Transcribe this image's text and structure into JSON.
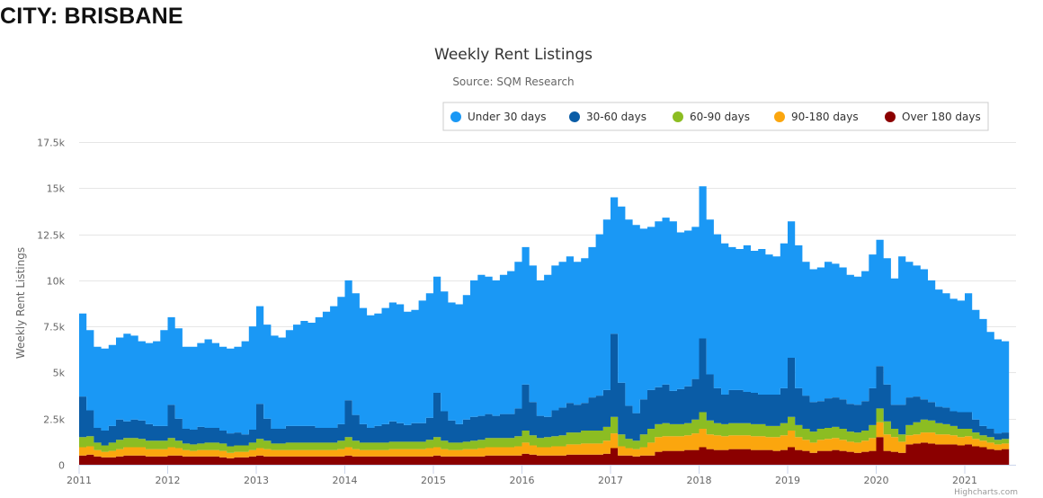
{
  "page": {
    "heading": "CITY: BRISBANE"
  },
  "chart_data": {
    "type": "area",
    "stacked": true,
    "step": true,
    "title": "Weekly Rent Listings",
    "subtitle": "Source: SQM Research",
    "ylabel": "Weekly Rent Listings",
    "xlabel": "",
    "ylim": [
      0,
      17500
    ],
    "yticks": [
      0,
      2500,
      5000,
      7500,
      10000,
      12500,
      15000,
      17500
    ],
    "ytick_labels": [
      "0",
      "2.5k",
      "5k",
      "7.5k",
      "10k",
      "12.5k",
      "15k",
      "17.5k"
    ],
    "xticks": [
      "2011",
      "2012",
      "2013",
      "2014",
      "2015",
      "2016",
      "2017",
      "2018",
      "2019",
      "2020",
      "2021"
    ],
    "grid": true,
    "legend_position": "top-right",
    "credit": "Highcharts.com",
    "x": [
      "2011-01",
      "2011-02",
      "2011-03",
      "2011-04",
      "2011-05",
      "2011-06",
      "2011-07",
      "2011-08",
      "2011-09",
      "2011-10",
      "2011-11",
      "2011-12",
      "2012-01",
      "2012-02",
      "2012-03",
      "2012-04",
      "2012-05",
      "2012-06",
      "2012-07",
      "2012-08",
      "2012-09",
      "2012-10",
      "2012-11",
      "2012-12",
      "2013-01",
      "2013-02",
      "2013-03",
      "2013-04",
      "2013-05",
      "2013-06",
      "2013-07",
      "2013-08",
      "2013-09",
      "2013-10",
      "2013-11",
      "2013-12",
      "2014-01",
      "2014-02",
      "2014-03",
      "2014-04",
      "2014-05",
      "2014-06",
      "2014-07",
      "2014-08",
      "2014-09",
      "2014-10",
      "2014-11",
      "2014-12",
      "2015-01",
      "2015-02",
      "2015-03",
      "2015-04",
      "2015-05",
      "2015-06",
      "2015-07",
      "2015-08",
      "2015-09",
      "2015-10",
      "2015-11",
      "2015-12",
      "2016-01",
      "2016-02",
      "2016-03",
      "2016-04",
      "2016-05",
      "2016-06",
      "2016-07",
      "2016-08",
      "2016-09",
      "2016-10",
      "2016-11",
      "2016-12",
      "2017-01",
      "2017-02",
      "2017-03",
      "2017-04",
      "2017-05",
      "2017-06",
      "2017-07",
      "2017-08",
      "2017-09",
      "2017-10",
      "2017-11",
      "2017-12",
      "2018-01",
      "2018-02",
      "2018-03",
      "2018-04",
      "2018-05",
      "2018-06",
      "2018-07",
      "2018-08",
      "2018-09",
      "2018-10",
      "2018-11",
      "2018-12",
      "2019-01",
      "2019-02",
      "2019-03",
      "2019-04",
      "2019-05",
      "2019-06",
      "2019-07",
      "2019-08",
      "2019-09",
      "2019-10",
      "2019-11",
      "2019-12",
      "2020-01",
      "2020-02",
      "2020-03",
      "2020-04",
      "2020-05",
      "2020-06",
      "2020-07",
      "2020-08",
      "2020-09",
      "2020-10",
      "2020-11",
      "2020-12",
      "2021-01",
      "2021-02",
      "2021-03",
      "2021-04",
      "2021-05",
      "2021-06"
    ],
    "series": [
      {
        "name": "Under 30 days",
        "color": "#1a98f5",
        "values": [
          4500,
          4350,
          4400,
          4450,
          4400,
          4450,
          4750,
          4550,
          4300,
          4400,
          4600,
          5200,
          4750,
          4900,
          4450,
          4500,
          4550,
          4800,
          4600,
          4550,
          4600,
          4650,
          5050,
          5600,
          5300,
          5100,
          5050,
          4950,
          5200,
          5500,
          5700,
          5600,
          6000,
          6300,
          6600,
          6900,
          6500,
          6600,
          6300,
          6100,
          6100,
          6300,
          6450,
          6450,
          6150,
          6150,
          6650,
          6750,
          6300,
          6500,
          6400,
          6500,
          6750,
          7400,
          7650,
          7450,
          7350,
          7550,
          7750,
          7950,
          7450,
          7400,
          7350,
          7700,
          7850,
          7900,
          7950,
          7750,
          7850,
          8150,
          8750,
          9250,
          7400,
          9550,
          10100,
          10200,
          9250,
          8850,
          9000,
          9050,
          9200,
          8500,
          8450,
          8250,
          8250,
          8400,
          8350,
          8200,
          7750,
          7650,
          7950,
          7700,
          7900,
          7600,
          7500,
          7850,
          7400,
          7750,
          7250,
          7200,
          7250,
          7400,
          7250,
          7150,
          7000,
          6950,
          7050,
          7250,
          6850,
          6850,
          6850,
          8050,
          7350,
          7100,
          7050,
          6600,
          6350,
          6200,
          6100,
          6050,
          6450,
          5950,
          5800,
          5250,
          5100,
          4950
        ]
      },
      {
        "name": "30-60 days",
        "color": "#0a5ca6",
        "values": [
          2200,
          1400,
          800,
          800,
          900,
          1100,
          900,
          1000,
          1000,
          900,
          800,
          800,
          1800,
          1200,
          800,
          800,
          900,
          800,
          800,
          700,
          700,
          700,
          600,
          700,
          1900,
          1200,
          800,
          800,
          900,
          900,
          900,
          900,
          800,
          800,
          800,
          900,
          2000,
          1400,
          1000,
          800,
          900,
          1000,
          1100,
          1000,
          900,
          1000,
          1000,
          1200,
          2400,
          1600,
          1200,
          1000,
          1200,
          1300,
          1300,
          1300,
          1200,
          1300,
          1300,
          1500,
          2500,
          1800,
          1200,
          1100,
          1400,
          1500,
          1600,
          1500,
          1500,
          1800,
          1900,
          2000,
          4500,
          2800,
          1800,
          1500,
          1900,
          2100,
          2000,
          2100,
          1800,
          1900,
          2000,
          2200,
          4000,
          2500,
          1900,
          1600,
          1800,
          1800,
          1700,
          1700,
          1600,
          1700,
          1700,
          1900,
          3200,
          2000,
          1800,
          1600,
          1500,
          1600,
          1600,
          1600,
          1500,
          1500,
          1600,
          2000,
          2300,
          2000,
          1300,
          1600,
          1500,
          1400,
          1100,
          1000,
          900,
          900,
          800,
          900,
          900,
          700,
          500,
          450,
          350,
          350
        ]
      },
      {
        "name": "60-90 days",
        "color": "#8cbd22",
        "values": [
          550,
          550,
          400,
          350,
          450,
          500,
          500,
          500,
          450,
          450,
          450,
          450,
          500,
          400,
          350,
          350,
          350,
          400,
          400,
          400,
          350,
          350,
          350,
          400,
          500,
          450,
          350,
          350,
          400,
          400,
          400,
          400,
          400,
          400,
          400,
          450,
          550,
          450,
          400,
          400,
          400,
          400,
          400,
          400,
          400,
          400,
          400,
          450,
          550,
          450,
          400,
          400,
          400,
          450,
          450,
          500,
          500,
          500,
          500,
          550,
          650,
          550,
          500,
          550,
          550,
          600,
          650,
          650,
          700,
          700,
          700,
          750,
          900,
          650,
          500,
          450,
          700,
          750,
          700,
          700,
          650,
          650,
          650,
          750,
          900,
          750,
          650,
          650,
          650,
          650,
          650,
          650,
          650,
          600,
          600,
          650,
          750,
          650,
          600,
          600,
          600,
          600,
          600,
          600,
          550,
          550,
          550,
          700,
          750,
          700,
          450,
          400,
          550,
          650,
          700,
          650,
          600,
          550,
          500,
          450,
          400,
          350,
          300,
          300,
          250,
          250
        ]
      },
      {
        "name": "90-180 days",
        "color": "#fba60e",
        "values": [
          450,
          450,
          350,
          300,
          350,
          400,
          450,
          450,
          450,
          400,
          400,
          400,
          450,
          400,
          350,
          300,
          350,
          350,
          350,
          350,
          300,
          300,
          300,
          350,
          400,
          400,
          350,
          350,
          350,
          350,
          350,
          350,
          350,
          350,
          350,
          400,
          450,
          400,
          350,
          350,
          350,
          350,
          400,
          400,
          400,
          400,
          400,
          450,
          450,
          400,
          350,
          350,
          400,
          400,
          450,
          450,
          450,
          450,
          450,
          500,
          600,
          500,
          450,
          450,
          500,
          500,
          550,
          550,
          600,
          600,
          600,
          700,
          800,
          500,
          400,
          400,
          450,
          700,
          800,
          800,
          800,
          800,
          800,
          900,
          1000,
          800,
          800,
          750,
          750,
          750,
          750,
          750,
          750,
          700,
          750,
          800,
          900,
          700,
          600,
          550,
          600,
          650,
          650,
          600,
          550,
          550,
          600,
          700,
          800,
          900,
          800,
          600,
          500,
          500,
          550,
          600,
          550,
          550,
          500,
          450,
          450,
          400,
          350,
          350,
          300,
          300
        ]
      },
      {
        "name": "Over 180 days",
        "color": "#8b0000",
        "values": [
          500,
          550,
          450,
          400,
          400,
          450,
          500,
          500,
          500,
          450,
          450,
          450,
          500,
          500,
          450,
          450,
          450,
          450,
          450,
          400,
          350,
          400,
          400,
          450,
          500,
          450,
          450,
          450,
          450,
          450,
          450,
          450,
          450,
          450,
          450,
          450,
          500,
          450,
          450,
          450,
          450,
          450,
          450,
          450,
          450,
          450,
          450,
          450,
          500,
          450,
          450,
          450,
          450,
          450,
          450,
          500,
          500,
          500,
          500,
          500,
          600,
          550,
          500,
          500,
          500,
          500,
          550,
          550,
          550,
          550,
          550,
          600,
          900,
          500,
          500,
          450,
          500,
          500,
          700,
          750,
          750,
          750,
          800,
          800,
          950,
          850,
          800,
          800,
          850,
          850,
          850,
          800,
          800,
          800,
          750,
          800,
          950,
          800,
          750,
          650,
          750,
          750,
          800,
          750,
          700,
          650,
          700,
          750,
          1500,
          750,
          700,
          650,
          1100,
          1150,
          1200,
          1150,
          1100,
          1100,
          1100,
          1050,
          1100,
          1000,
          950,
          850,
          800,
          850
        ]
      }
    ]
  }
}
